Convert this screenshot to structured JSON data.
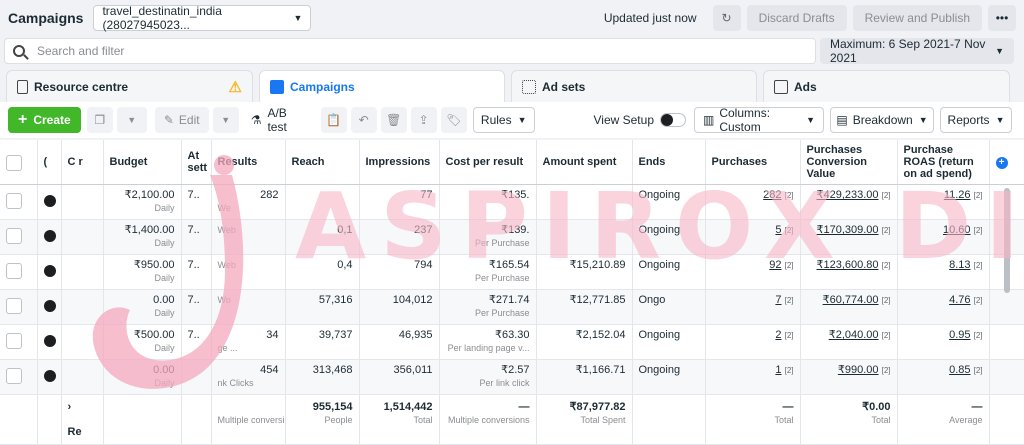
{
  "header": {
    "title": "Campaigns",
    "account": "travel_destinatin_india (28027945023...",
    "updated": "Updated just now",
    "discard": "Discard Drafts",
    "review": "Review and Publish",
    "more": "•••"
  },
  "search": {
    "placeholder": "Search and filter",
    "date_range": "Maximum: 6 Sep 2021-7 Nov 2021"
  },
  "tabs": {
    "resource": "Resource centre",
    "campaigns": "Campaigns",
    "adsets": "Ad sets",
    "ads": "Ads",
    "warning": "⚠"
  },
  "toolbar": {
    "create": "Create",
    "edit": "Edit",
    "ab_test": "A/B test",
    "rules": "Rules",
    "view_setup": "View Setup",
    "columns": "Columns: Custom",
    "breakdown": "Breakdown",
    "reports": "Reports"
  },
  "table": {
    "headers": {
      "delivery": "(",
      "name": "C r",
      "budget": "Budget",
      "attribution": "At sett",
      "results": "Results",
      "reach": "Reach",
      "impressions": "Impressions",
      "cost": "Cost per result",
      "spent": "Amount spent",
      "ends": "Ends",
      "purchases": "Purchases",
      "pcv": "Purchases Conversion Value",
      "roas": "Purchase ROAS (return on ad spend)"
    },
    "rows": [
      {
        "budget": "₹2,100.00",
        "budget_sub": "Daily",
        "attr": "7..",
        "results": "282",
        "results_sub": "We",
        "reach": "",
        "impressions": "77",
        "cost": "₹135.",
        "cost_sub": "",
        "spent": "",
        "ends": "Ongoing",
        "purchases": "282",
        "pcv": "₹429,233.00",
        "roas": "11.26"
      },
      {
        "budget": "₹1,400.00",
        "budget_sub": "Daily",
        "attr": "7..",
        "results": "",
        "results_sub": "Web",
        "reach": "0,1",
        "impressions": "237",
        "cost": "₹139.",
        "cost_sub": "Per Purchase",
        "spent": "",
        "ends": "Ongoing",
        "purchases": "5",
        "pcv": "₹170,309.00",
        "roas": "10.60"
      },
      {
        "budget": "₹950.00",
        "budget_sub": "Daily",
        "attr": "7..",
        "results": "",
        "results_sub": "Web",
        "reach": "0,4",
        "impressions": "794",
        "cost": "₹165.54",
        "cost_sub": "Per Purchase",
        "spent": "₹15,210.89",
        "ends": "Ongoing",
        "purchases": "92",
        "pcv": "₹123,600.80",
        "roas": "8.13"
      },
      {
        "budget": "0.00",
        "budget_sub": "Daily",
        "attr": "7..",
        "results": "",
        "results_sub": "Wo",
        "reach": "57,316",
        "impressions": "104,012",
        "cost": "₹271.74",
        "cost_sub": "Per Purchase",
        "spent": "₹12,771.85",
        "ends": "Ongo",
        "purchases": "7",
        "pcv": "₹60,774.00",
        "roas": "4.76"
      },
      {
        "budget": "₹500.00",
        "budget_sub": "Daily",
        "attr": "7..",
        "results": "34",
        "results_sub": "ge ...",
        "reach": "39,737",
        "impressions": "46,935",
        "cost": "₹63.30",
        "cost_sub": "Per landing page v...",
        "spent": "₹2,152.04",
        "ends": "Ongoing",
        "purchases": "2",
        "pcv": "₹2,040.00",
        "roas": "0.95"
      },
      {
        "budget": "0.00",
        "budget_sub": "Daily",
        "attr": "",
        "results": "454",
        "results_sub": "nk Clicks",
        "reach": "313,468",
        "impressions": "356,011",
        "cost": "₹2.57",
        "cost_sub": "Per link click",
        "spent": "₹1,166.71",
        "ends": "Ongoing",
        "purchases": "1",
        "pcv": "₹990.00",
        "roas": "0.85"
      }
    ],
    "totals": {
      "name": "Re",
      "results": "Multiple conversi",
      "reach": "955,154",
      "reach_sub": "People",
      "impressions": "1,514,442",
      "impressions_sub": "Total",
      "cost": "—",
      "cost_sub": "Multiple conversions",
      "spent": "₹87,977.82",
      "spent_sub": "Total Spent",
      "purchases": "—",
      "purchases_sub": "Total",
      "pcv": "₹0.00",
      "pcv_sub": "Total",
      "roas": "—",
      "roas_sub": "Average"
    }
  },
  "watermark": "ASPIROX DIGITAL"
}
